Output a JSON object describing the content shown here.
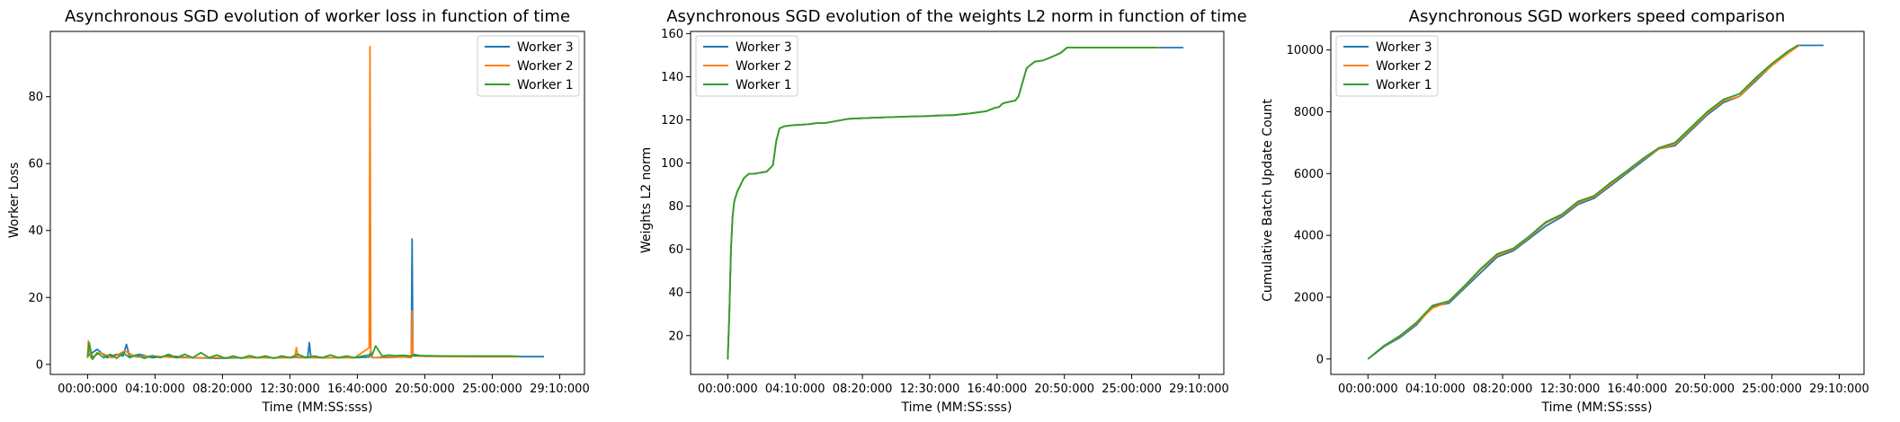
{
  "colors": {
    "worker3": "#1f77b4",
    "worker2": "#ff7f0e",
    "worker1": "#2ca02c"
  },
  "chart_data": [
    {
      "type": "line",
      "title": "Asynchronous SGD evolution of worker loss in function of time",
      "xlabel": "Time (MM:SS:sss)",
      "ylabel": "Worker Loss",
      "xticks": [
        "00:00:000",
        "04:10:000",
        "08:20:000",
        "12:30:000",
        "16:40:000",
        "20:50:000",
        "25:00:000",
        "29:10:000"
      ],
      "yticks": [
        0,
        20,
        40,
        60,
        80
      ],
      "xlim_minutes": [
        -2.3,
        30.7
      ],
      "ylim": [
        -3,
        99.5
      ],
      "legend_loc": "upper right",
      "grid": false,
      "series": [
        {
          "name": "Worker 3",
          "color": "#1f77b4",
          "x_minutes": [
            0,
            0.6,
            1.2,
            1.8,
            2.2,
            2.4,
            2.6,
            3.2,
            4.0,
            5.0,
            6.5,
            8.0,
            10.0,
            12.0,
            13.6,
            13.7,
            13.8,
            15.0,
            16.5,
            17.4,
            17.5,
            17.6,
            18.5,
            19.5,
            20.0,
            20.05,
            20.1,
            20.8,
            22.0,
            24.0,
            26.0,
            27.5,
            28.2
          ],
          "y": [
            2.5,
            4.5,
            2.0,
            3.0,
            2.5,
            6.0,
            2.2,
            3.0,
            2.0,
            2.5,
            2.0,
            1.8,
            2.0,
            2.0,
            2.2,
            6.5,
            2.0,
            2.0,
            2.0,
            2.2,
            4.0,
            2.0,
            2.2,
            2.2,
            2.5,
            37.5,
            3.0,
            2.4,
            2.4,
            2.3,
            2.3,
            2.3,
            2.3
          ]
        },
        {
          "name": "Worker 2",
          "color": "#ff7f0e",
          "x_minutes": [
            0,
            0.05,
            0.2,
            0.8,
            1.5,
            2.3,
            3.0,
            4.0,
            5.5,
            7.0,
            9.0,
            11.0,
            12.8,
            12.9,
            13.0,
            15.0,
            16.5,
            17.4,
            17.45,
            17.5,
            17.55,
            18.5,
            19.5,
            20.0,
            20.05,
            20.1,
            21.0,
            23.0,
            25.0,
            26.7
          ],
          "y": [
            2.0,
            7.0,
            2.0,
            3.5,
            2.0,
            4.0,
            2.2,
            2.5,
            2.0,
            2.0,
            2.0,
            2.0,
            2.0,
            5.0,
            2.0,
            2.0,
            2.0,
            5.0,
            95.0,
            3.0,
            2.0,
            2.0,
            2.2,
            2.0,
            16.0,
            2.5,
            2.4,
            2.3,
            2.3,
            2.3
          ]
        },
        {
          "name": "Worker 1",
          "color": "#2ca02c",
          "x_minutes": [
            0,
            0.1,
            0.3,
            0.6,
            1.0,
            1.4,
            1.8,
            2.2,
            2.6,
            3.0,
            3.5,
            4.0,
            4.5,
            5.0,
            5.5,
            6.0,
            6.5,
            7.0,
            7.5,
            8.0,
            8.5,
            9.0,
            9.5,
            10.0,
            10.5,
            11.0,
            11.5,
            12.0,
            12.5,
            13.0,
            13.5,
            14.0,
            14.5,
            15.0,
            15.5,
            16.0,
            16.5,
            17.0,
            17.6,
            17.8,
            18.2,
            18.6,
            19.0,
            19.5,
            20.0,
            20.4,
            21.0,
            22.0,
            23.0,
            24.0,
            25.0,
            26.0,
            26.7
          ],
          "y": [
            2.0,
            6.5,
            1.5,
            3.5,
            2.0,
            3.0,
            1.8,
            3.5,
            2.0,
            2.8,
            1.8,
            2.6,
            2.0,
            3.0,
            2.0,
            3.0,
            2.0,
            3.5,
            2.0,
            2.8,
            1.8,
            2.5,
            1.8,
            2.6,
            2.0,
            2.5,
            1.8,
            2.5,
            2.0,
            3.0,
            2.0,
            2.5,
            2.0,
            2.8,
            2.0,
            2.5,
            2.0,
            2.5,
            3.0,
            5.5,
            2.5,
            2.8,
            2.6,
            2.7,
            2.5,
            2.6,
            2.6,
            2.5,
            2.5,
            2.5,
            2.5,
            2.5,
            2.4
          ]
        }
      ]
    },
    {
      "type": "line",
      "title": "Asynchronous SGD evolution of the weights L2 norm in function of time",
      "xlabel": "Time (MM:SS:sss)",
      "ylabel": "Weights L2 norm",
      "xticks": [
        "00:00:000",
        "04:10:000",
        "08:20:000",
        "12:30:000",
        "16:40:000",
        "20:50:000",
        "25:00:000",
        "29:10:000"
      ],
      "yticks": [
        20,
        40,
        60,
        80,
        100,
        120,
        140,
        160
      ],
      "xlim_minutes": [
        -2.3,
        30.7
      ],
      "ylim": [
        2,
        161
      ],
      "legend_loc": "upper left",
      "grid": false,
      "series": [
        {
          "name": "Worker 3",
          "color": "#1f77b4",
          "x_minutes": [
            0,
            0.1,
            0.2,
            0.3,
            0.4,
            0.6,
            0.8,
            1.0,
            1.3,
            1.6,
            2.0,
            2.4,
            2.8,
            3.0,
            3.2,
            3.5,
            4.0,
            5.0,
            5.5,
            6.0,
            7.5,
            9.0,
            11.0,
            12.5,
            13.0,
            14.0,
            15.0,
            16.0,
            16.5,
            16.8,
            17.0,
            17.2,
            17.5,
            17.8,
            18.0,
            18.5,
            19.0,
            19.5,
            20.0,
            20.3,
            20.6,
            21.0,
            22.0,
            24.0,
            26.0,
            27.0,
            28.2
          ],
          "y": [
            9,
            30,
            60,
            75,
            82,
            87,
            90,
            93,
            95,
            95,
            95.5,
            96,
            99,
            110,
            116,
            117,
            117.5,
            118,
            118.5,
            118.5,
            120.5,
            121,
            121.5,
            121.8,
            122,
            122.2,
            123,
            124,
            125.5,
            126,
            127.5,
            128,
            128.5,
            129,
            131,
            144,
            147,
            147.5,
            149,
            150,
            151,
            153.5,
            153.5,
            153.5,
            153.5,
            153.5,
            153.5
          ]
        },
        {
          "name": "Worker 2",
          "color": "#ff7f0e",
          "x_minutes": [
            0,
            0.1,
            0.2,
            0.3,
            0.4,
            0.6,
            0.8,
            1.0,
            1.3,
            1.6,
            2.0,
            2.4,
            2.8,
            3.0,
            3.2,
            3.5,
            4.0,
            5.0,
            5.5,
            6.0,
            7.5,
            9.0,
            11.0,
            12.5,
            13.0,
            14.0,
            15.0,
            16.0,
            16.5,
            16.8,
            17.0,
            17.2,
            17.5,
            17.8,
            18.0,
            18.5,
            19.0,
            19.5,
            20.0,
            20.3,
            20.6,
            21.0,
            22.0,
            24.0,
            26.0,
            26.7
          ],
          "y": [
            9,
            30,
            60,
            75,
            82,
            87,
            90,
            93,
            95,
            95,
            95.5,
            96,
            99,
            110,
            116,
            117,
            117.5,
            118,
            118.5,
            118.5,
            120.5,
            121,
            121.5,
            121.8,
            122,
            122.2,
            123,
            124,
            125.5,
            126,
            127.5,
            128,
            128.5,
            129,
            131,
            144,
            147,
            147.5,
            149,
            150,
            151,
            153.5,
            153.5,
            153.5,
            153.5,
            153.5
          ]
        },
        {
          "name": "Worker 1",
          "color": "#2ca02c",
          "x_minutes": [
            0,
            0.1,
            0.2,
            0.3,
            0.4,
            0.6,
            0.8,
            1.0,
            1.3,
            1.6,
            2.0,
            2.4,
            2.8,
            3.0,
            3.2,
            3.5,
            4.0,
            5.0,
            5.5,
            6.0,
            7.5,
            9.0,
            11.0,
            12.5,
            13.0,
            14.0,
            15.0,
            16.0,
            16.5,
            16.8,
            17.0,
            17.2,
            17.5,
            17.8,
            18.0,
            18.5,
            19.0,
            19.5,
            20.0,
            20.3,
            20.6,
            21.0,
            22.0,
            24.0,
            26.0,
            26.6
          ],
          "y": [
            9,
            30,
            60,
            75,
            82,
            87,
            90,
            93,
            95,
            95,
            95.5,
            96,
            99,
            110,
            116,
            117,
            117.5,
            118,
            118.5,
            118.5,
            120.5,
            121,
            121.5,
            121.8,
            122,
            122.2,
            123,
            124,
            125.5,
            126,
            127.5,
            128,
            128.5,
            129,
            131,
            144,
            147,
            147.5,
            149,
            150,
            151,
            153.5,
            153.5,
            153.5,
            153.5,
            153.5
          ]
        }
      ]
    },
    {
      "type": "line",
      "title": "Asynchronous SGD workers speed comparison",
      "xlabel": "Time (MM:SS:sss)",
      "ylabel": "Cumulative Batch Update Count",
      "xticks": [
        "00:00:000",
        "04:10:000",
        "08:20:000",
        "12:30:000",
        "16:40:000",
        "20:50:000",
        "25:00:000",
        "29:10:000"
      ],
      "yticks": [
        0,
        2000,
        4000,
        6000,
        8000,
        10000
      ],
      "xlim_minutes": [
        -2.3,
        30.7
      ],
      "ylim": [
        -500,
        10600
      ],
      "legend_loc": "upper left",
      "grid": false,
      "series": [
        {
          "name": "Worker 3",
          "color": "#1f77b4",
          "x_minutes": [
            0,
            1.0,
            2.0,
            3.0,
            4.0,
            5.0,
            6.0,
            7.0,
            8.0,
            9.0,
            10.0,
            11.0,
            12.0,
            13.0,
            14.0,
            15.0,
            16.0,
            17.0,
            18.0,
            19.0,
            20.0,
            21.0,
            22.0,
            23.0,
            24.0,
            25.0,
            26.0,
            26.6,
            27.0,
            28.2
          ],
          "y": [
            0,
            400,
            700,
            1100,
            1700,
            1800,
            2300,
            2800,
            3300,
            3500,
            3900,
            4300,
            4600,
            5000,
            5200,
            5600,
            6000,
            6400,
            6800,
            6900,
            7400,
            7900,
            8300,
            8500,
            9000,
            9500,
            9900,
            10150,
            10150,
            10150
          ]
        },
        {
          "name": "Worker 2",
          "color": "#ff7f0e",
          "x_minutes": [
            0,
            1.0,
            2.0,
            3.0,
            4.0,
            5.0,
            6.0,
            7.0,
            8.0,
            9.0,
            10.0,
            11.0,
            12.0,
            13.0,
            14.0,
            15.0,
            16.0,
            17.0,
            18.0,
            19.0,
            20.0,
            21.0,
            22.0,
            23.0,
            24.0,
            25.0,
            26.0,
            26.7
          ],
          "y": [
            0,
            420,
            740,
            1150,
            1650,
            1850,
            2350,
            2900,
            3350,
            3550,
            3950,
            4400,
            4650,
            5050,
            5250,
            5650,
            6050,
            6450,
            6800,
            6950,
            7450,
            7950,
            8350,
            8500,
            9050,
            9500,
            9900,
            10150
          ]
        },
        {
          "name": "Worker 1",
          "color": "#2ca02c",
          "x_minutes": [
            0,
            1.0,
            2.0,
            3.0,
            4.0,
            5.0,
            6.0,
            7.0,
            8.0,
            9.0,
            10.0,
            11.0,
            12.0,
            13.0,
            14.0,
            15.0,
            16.0,
            17.0,
            18.0,
            19.0,
            20.0,
            21.0,
            22.0,
            23.0,
            24.0,
            25.0,
            26.0,
            26.6
          ],
          "y": [
            0,
            430,
            760,
            1180,
            1730,
            1870,
            2380,
            2930,
            3400,
            3580,
            3980,
            4430,
            4680,
            5100,
            5280,
            5700,
            6080,
            6480,
            6830,
            7000,
            7500,
            8000,
            8400,
            8580,
            9100,
            9560,
            9960,
            10150
          ]
        }
      ]
    }
  ]
}
